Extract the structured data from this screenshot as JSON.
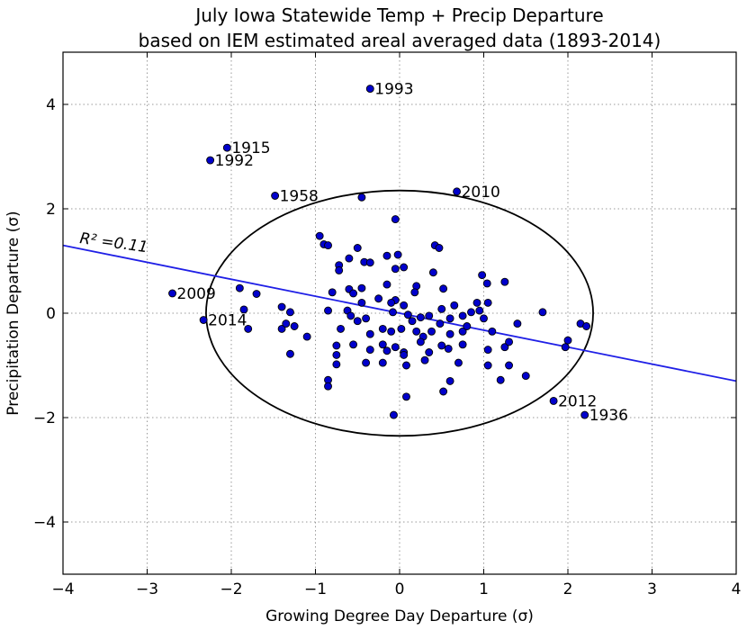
{
  "chart_data": {
    "type": "scatter",
    "title": [
      "July Iowa Statewide Temp + Precip Departure",
      "based on IEM estimated areal averaged data (1893-2014)"
    ],
    "xlabel": "Growing Degree Day Departure (σ)",
    "ylabel": "Precipitation Departure (σ)",
    "xlim": [
      -4,
      4
    ],
    "ylim": [
      -5,
      5
    ],
    "xticks": [
      -4,
      -3,
      -2,
      -1,
      0,
      1,
      2,
      3,
      4
    ],
    "yticks": [
      -4,
      -2,
      0,
      2,
      4
    ],
    "xtick_labels": [
      "−4",
      "−3",
      "−2",
      "−1",
      "0",
      "1",
      "2",
      "3",
      "4"
    ],
    "ytick_labels": [
      "−4",
      "−2",
      "0",
      "2",
      "4"
    ],
    "grid": true,
    "colors": {
      "points": "#0000cc",
      "fit_line": "#1f1fe6",
      "ellipse": "#000000"
    },
    "regression": {
      "label": "R² =0.11",
      "slope": -0.325,
      "intercept": 0.0
    },
    "ellipse": {
      "cx": 0.0,
      "cy": 0.0,
      "rx": 2.3,
      "ry": 2.35
    },
    "labeled_points": [
      {
        "x": -0.35,
        "y": 4.3,
        "label": "1993"
      },
      {
        "x": -2.05,
        "y": 3.17,
        "label": "1915"
      },
      {
        "x": -2.25,
        "y": 2.93,
        "label": "1992"
      },
      {
        "x": -1.48,
        "y": 2.25,
        "label": "1958"
      },
      {
        "x": 0.68,
        "y": 2.33,
        "label": "2010"
      },
      {
        "x": -2.7,
        "y": 0.38,
        "label": "2009"
      },
      {
        "x": -2.33,
        "y": -0.13,
        "label": "2014"
      },
      {
        "x": 1.83,
        "y": -1.68,
        "label": "2012"
      },
      {
        "x": 2.2,
        "y": -1.95,
        "label": "1936"
      }
    ],
    "points": [
      [
        -0.45,
        2.22
      ],
      [
        -0.05,
        1.8
      ],
      [
        -0.95,
        1.48
      ],
      [
        -0.9,
        1.32
      ],
      [
        -0.85,
        1.3
      ],
      [
        -0.5,
        1.25
      ],
      [
        -0.15,
        1.1
      ],
      [
        -0.02,
        1.12
      ],
      [
        0.42,
        1.3
      ],
      [
        0.47,
        1.25
      ],
      [
        -0.6,
        1.05
      ],
      [
        -0.72,
        0.92
      ],
      [
        -0.72,
        0.82
      ],
      [
        -0.42,
        0.98
      ],
      [
        -0.35,
        0.97
      ],
      [
        -0.05,
        0.85
      ],
      [
        0.05,
        0.88
      ],
      [
        0.4,
        0.78
      ],
      [
        0.98,
        0.73
      ],
      [
        1.04,
        0.57
      ],
      [
        1.25,
        0.6
      ],
      [
        -1.9,
        0.48
      ],
      [
        -1.7,
        0.37
      ],
      [
        -0.8,
        0.4
      ],
      [
        -0.6,
        0.46
      ],
      [
        -0.55,
        0.38
      ],
      [
        -0.45,
        0.48
      ],
      [
        -0.15,
        0.55
      ],
      [
        -0.05,
        0.25
      ],
      [
        0.2,
        0.52
      ],
      [
        0.18,
        0.4
      ],
      [
        0.52,
        0.47
      ],
      [
        -1.85,
        0.07
      ],
      [
        -1.4,
        0.12
      ],
      [
        -1.3,
        0.02
      ],
      [
        -0.85,
        0.05
      ],
      [
        -0.62,
        0.05
      ],
      [
        -0.58,
        -0.05
      ],
      [
        -0.45,
        0.2
      ],
      [
        -0.4,
        -0.1
      ],
      [
        -0.25,
        0.28
      ],
      [
        -0.1,
        0.2
      ],
      [
        -0.08,
        0.02
      ],
      [
        0.05,
        0.15
      ],
      [
        0.1,
        -0.03
      ],
      [
        0.25,
        -0.08
      ],
      [
        0.35,
        -0.05
      ],
      [
        0.5,
        0.08
      ],
      [
        0.6,
        -0.1
      ],
      [
        0.65,
        0.15
      ],
      [
        0.75,
        -0.05
      ],
      [
        0.85,
        0.02
      ],
      [
        0.92,
        0.2
      ],
      [
        1.05,
        0.2
      ],
      [
        0.95,
        0.05
      ],
      [
        1.0,
        -0.1
      ],
      [
        -1.8,
        -0.3
      ],
      [
        -1.4,
        -0.3
      ],
      [
        -1.35,
        -0.2
      ],
      [
        -1.25,
        -0.25
      ],
      [
        -1.1,
        -0.45
      ],
      [
        -0.7,
        -0.3
      ],
      [
        -0.5,
        -0.15
      ],
      [
        -0.35,
        -0.4
      ],
      [
        -0.2,
        -0.3
      ],
      [
        -0.1,
        -0.35
      ],
      [
        0.02,
        -0.3
      ],
      [
        0.15,
        -0.15
      ],
      [
        0.2,
        -0.35
      ],
      [
        0.28,
        -0.45
      ],
      [
        0.38,
        -0.35
      ],
      [
        0.48,
        -0.2
      ],
      [
        0.6,
        -0.4
      ],
      [
        0.75,
        -0.35
      ],
      [
        0.8,
        -0.25
      ],
      [
        1.1,
        -0.35
      ],
      [
        1.4,
        -0.2
      ],
      [
        1.7,
        0.02
      ],
      [
        2.15,
        -0.2
      ],
      [
        2.22,
        -0.25
      ],
      [
        -0.75,
        -0.62
      ],
      [
        -0.75,
        -0.8
      ],
      [
        -0.55,
        -0.6
      ],
      [
        -0.35,
        -0.7
      ],
      [
        -0.2,
        -0.6
      ],
      [
        -0.15,
        -0.72
      ],
      [
        -0.05,
        -0.65
      ],
      [
        0.05,
        -0.75
      ],
      [
        0.25,
        -0.55
      ],
      [
        0.35,
        -0.75
      ],
      [
        0.5,
        -0.62
      ],
      [
        0.58,
        -0.68
      ],
      [
        0.75,
        -0.6
      ],
      [
        1.05,
        -0.7
      ],
      [
        1.25,
        -0.65
      ],
      [
        1.3,
        -0.55
      ],
      [
        1.97,
        -0.65
      ],
      [
        2.0,
        -0.52
      ],
      [
        -1.3,
        -0.78
      ],
      [
        -0.75,
        -0.98
      ],
      [
        -0.4,
        -0.95
      ],
      [
        -0.2,
        -0.95
      ],
      [
        0.05,
        -0.8
      ],
      [
        0.08,
        -1.0
      ],
      [
        0.3,
        -0.9
      ],
      [
        0.7,
        -0.95
      ],
      [
        1.05,
        -1.0
      ],
      [
        1.3,
        -1.0
      ],
      [
        -0.85,
        -1.28
      ],
      [
        -0.85,
        -1.4
      ],
      [
        0.6,
        -1.3
      ],
      [
        1.2,
        -1.28
      ],
      [
        1.5,
        -1.2
      ],
      [
        0.52,
        -1.5
      ],
      [
        0.08,
        -1.6
      ],
      [
        -0.07,
        -1.95
      ]
    ]
  }
}
